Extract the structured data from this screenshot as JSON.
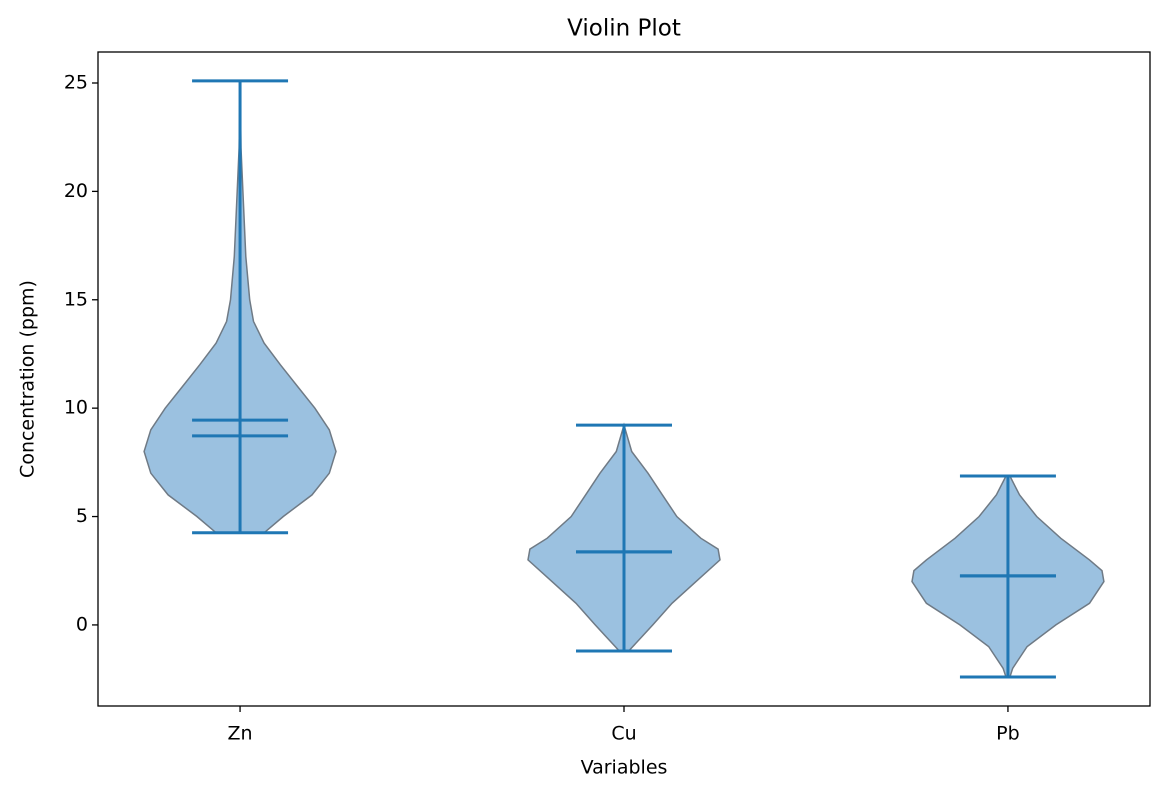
{
  "chart_data": {
    "type": "violin",
    "title": "Violin Plot",
    "x_label": "Variables",
    "y_label": "Concentration (ppm)",
    "categories": [
      "Zn",
      "Cu",
      "Pb"
    ],
    "fill_color": "#9bc1e0",
    "edge_color": "#6f7a85",
    "line_color": "#1f77b4",
    "ylim": [
      -3.74,
      26.43
    ],
    "yticks": [
      0,
      5,
      10,
      15,
      20,
      25
    ],
    "violins": [
      {
        "min": 4.25,
        "max": 25.1,
        "mean": 9.45,
        "median": 8.72,
        "density": {
          "y": [
            4.25,
            5,
            6,
            7,
            8,
            9,
            10,
            11,
            12,
            13,
            14,
            15,
            17,
            20,
            22,
            25.1
          ],
          "width": [
            0.25,
            0.45,
            0.75,
            0.93,
            1.0,
            0.93,
            0.78,
            0.6,
            0.42,
            0.25,
            0.14,
            0.1,
            0.06,
            0.03,
            0.01,
            0.0
          ]
        }
      },
      {
        "min": -1.2,
        "max": 9.22,
        "mean": 3.37,
        "median": 3.37,
        "density": {
          "y": [
            -1.2,
            0,
            1,
            2,
            3,
            3.5,
            4,
            5,
            6,
            7,
            8,
            9.22
          ],
          "width": [
            0.05,
            0.3,
            0.5,
            0.75,
            1.0,
            0.98,
            0.8,
            0.55,
            0.4,
            0.25,
            0.08,
            0.0
          ]
        }
      },
      {
        "min": -2.4,
        "max": 6.87,
        "mean": 2.26,
        "median": 2.26,
        "density": {
          "y": [
            -2.4,
            -2,
            -1,
            0,
            1,
            2,
            2.5,
            3,
            4,
            5,
            6,
            6.87
          ],
          "width": [
            0.02,
            0.05,
            0.2,
            0.5,
            0.85,
            1.0,
            0.98,
            0.85,
            0.55,
            0.3,
            0.12,
            0.02
          ]
        }
      }
    ]
  }
}
